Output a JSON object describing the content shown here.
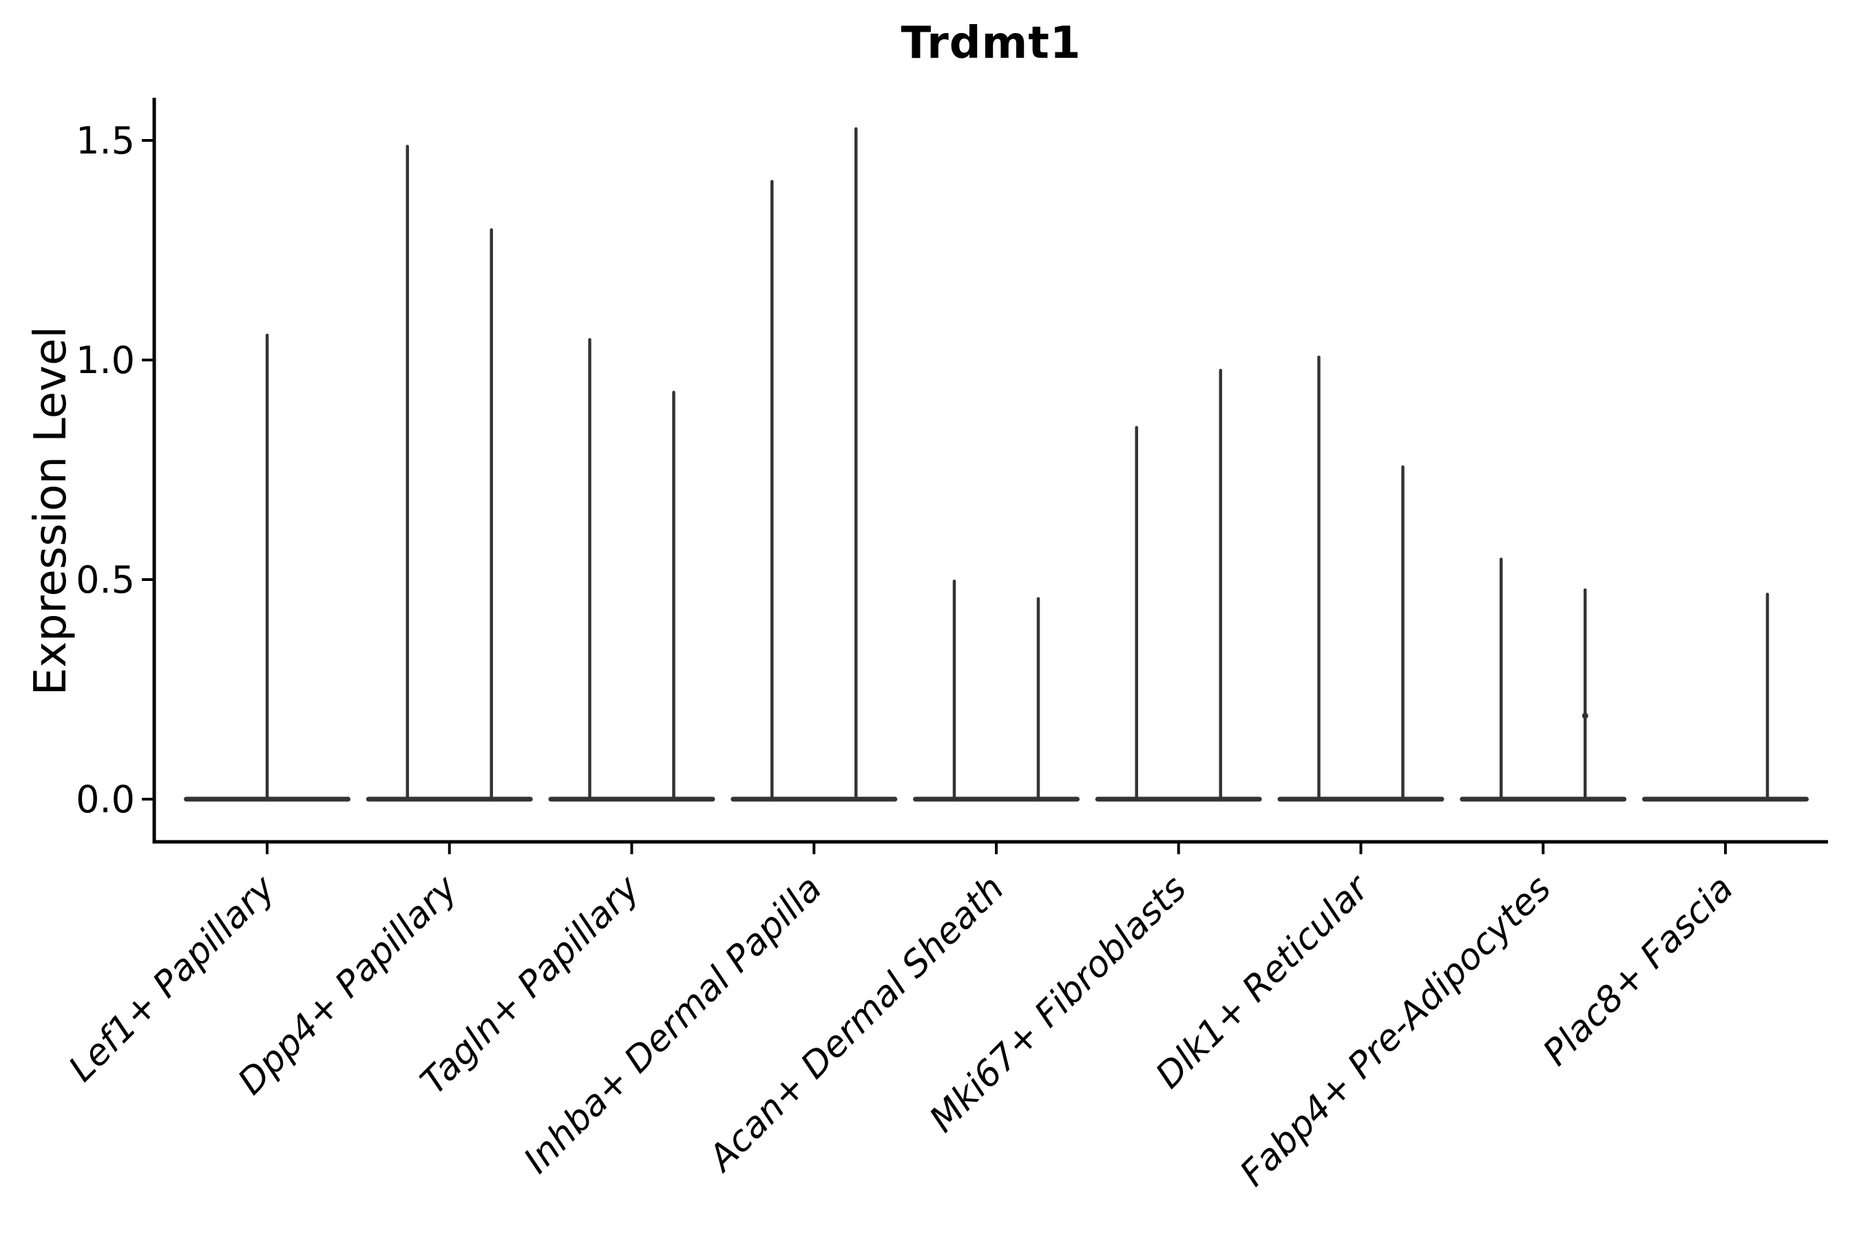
{
  "chart_data": {
    "type": "violin",
    "title": "Trdmt1",
    "ylabel": "Expression Level",
    "xlabel": "",
    "yticks": [
      0.0,
      0.5,
      1.0,
      1.5
    ],
    "ylim": [
      -0.1,
      1.6
    ],
    "grid": false,
    "legend": "none",
    "xtick_rotation": 45,
    "xtick_style": "italic",
    "categories": [
      "Lef1+ Papillary",
      "Dpp4+ Papillary",
      "Tagln+ Papillary",
      "Inhba+ Dermal Papilla",
      "Acan+ Dermal Sheath",
      "Mki67+ Fibroblasts",
      "Dlk1+ Reticular",
      "Fabp4+ Pre-Adipocytes",
      "Plac8+ Fascia"
    ],
    "series": [
      {
        "category": "Lef1+ Papillary",
        "violins": [
          {
            "slot": "center",
            "max": 1.06
          }
        ]
      },
      {
        "category": "Dpp4+ Papillary",
        "violins": [
          {
            "slot": "left",
            "max": 1.49
          },
          {
            "slot": "right",
            "max": 1.3
          }
        ]
      },
      {
        "category": "Tagln+ Papillary",
        "violins": [
          {
            "slot": "left",
            "max": 1.05
          },
          {
            "slot": "right",
            "max": 0.93
          }
        ]
      },
      {
        "category": "Inhba+ Dermal Papilla",
        "violins": [
          {
            "slot": "left",
            "max": 1.41
          },
          {
            "slot": "right",
            "max": 1.53
          }
        ]
      },
      {
        "category": "Acan+ Dermal Sheath",
        "violins": [
          {
            "slot": "left",
            "max": 0.5
          },
          {
            "slot": "right",
            "max": 0.46
          }
        ]
      },
      {
        "category": "Mki67+ Fibroblasts",
        "violins": [
          {
            "slot": "left",
            "max": 0.85
          },
          {
            "slot": "right",
            "max": 0.98
          }
        ]
      },
      {
        "category": "Dlk1+ Reticular",
        "violins": [
          {
            "slot": "left",
            "max": 1.01
          },
          {
            "slot": "right",
            "max": 0.76
          }
        ]
      },
      {
        "category": "Fabp4+ Pre-Adipocytes",
        "violins": [
          {
            "slot": "left",
            "max": 0.55
          },
          {
            "slot": "right",
            "max": 0.48,
            "points": [
              0.19
            ]
          }
        ]
      },
      {
        "category": "Plac8+ Fascia",
        "violins": [
          {
            "slot": "right",
            "max": 0.47
          }
        ]
      }
    ],
    "baseline_value": 0.0,
    "colors": {
      "violin": "#343434",
      "axis": "#000000",
      "text": "#000000",
      "background": "#ffffff"
    }
  }
}
